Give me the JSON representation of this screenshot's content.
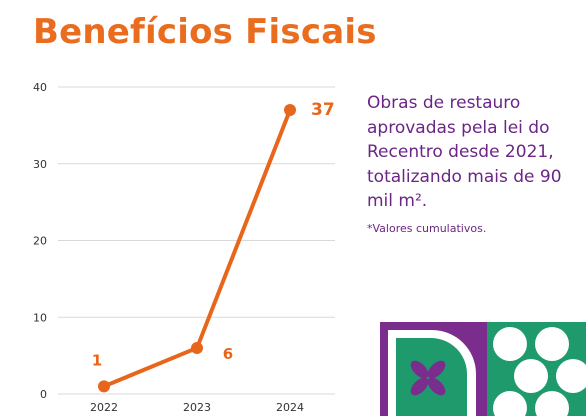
{
  "header": {
    "title": "Benefícios Fiscais"
  },
  "description": {
    "text": "Obras de restauro aprovadas pela lei do Recentro desde 2021, totalizando mais de 90 mil m².",
    "note": "*Valores cumulativos."
  },
  "colors": {
    "title": "#EA6C1E",
    "line": "#E8661C",
    "text_purple": "#6B2586",
    "logo_purple": "#7B2D8E",
    "logo_green": "#1E9A6C",
    "axis_text": "#333333",
    "grid": "#D9D9D9"
  },
  "logo": {
    "icon": "recentro-logo-icon"
  },
  "chart_data": {
    "type": "line",
    "categories": [
      "2022",
      "2023",
      "2024"
    ],
    "values": [
      1,
      6,
      37
    ],
    "data_labels": [
      "1",
      "6",
      "37"
    ],
    "yticks": [
      "0",
      "10",
      "20",
      "30",
      "40"
    ],
    "ylim": [
      0,
      40
    ],
    "grid": true,
    "legend": "none"
  }
}
